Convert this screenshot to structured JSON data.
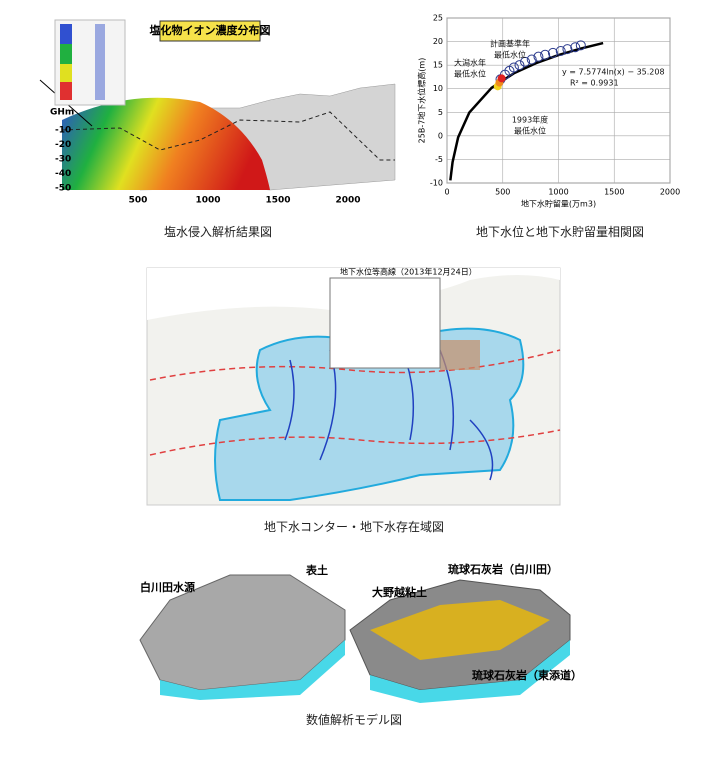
{
  "figures": [
    {
      "caption": "塩水侵入解析結果図",
      "title": "塩化物イオン濃度分布図",
      "y_axis_label": "GHm",
      "y_tick_labels": [
        "-10",
        "-20",
        "-30",
        "-40",
        "-50"
      ],
      "x_tick_labels": [
        "500",
        "1000",
        "1500",
        "2000"
      ]
    },
    {
      "caption": "地下水位と地下水貯留量相関図"
    },
    {
      "caption": "地下水コンター・地下水存在域図",
      "title": "地下水位等高線（2013年12月24日）"
    },
    {
      "caption": "数値解析モデル図",
      "labels": [
        "白川田水源",
        "表土",
        "大野越粘土",
        "琉球石灰岩（白川田）",
        "琉球石灰岩（東添道）"
      ]
    }
  ],
  "chart_data": {
    "type": "scatter",
    "x_label": "地下水貯留量(万m3)",
    "y_label": "25B-7地下水位標高(m)",
    "xlim": [
      0,
      2000
    ],
    "xticks": [
      0,
      500,
      1000,
      1500,
      2000
    ],
    "ylim": [
      -10,
      25
    ],
    "yticks": [
      -10,
      -5,
      0,
      5,
      10,
      15,
      20,
      25
    ],
    "grid": true,
    "annotations": [
      [
        "計画基準年",
        "最低水位"
      ],
      [
        "大潟水年",
        "最低水位"
      ],
      [
        "1993年度",
        "最低水位"
      ],
      [
        "y = 7.5774ln(x) − 35.208",
        "R² = 0.9931"
      ]
    ],
    "series": [
      {
        "style": "line",
        "color": "#000000",
        "x": [
          30,
          50,
          100,
          200,
          400,
          600,
          800,
          1000,
          1200,
          1400
        ],
        "values": [
          -9.44,
          -5.57,
          -0.31,
          4.94,
          10.19,
          13.27,
          15.44,
          17.13,
          18.52,
          19.68
        ]
      },
      {
        "style": "open-marker",
        "color": "#2b3a8c",
        "x": [
          480,
          520,
          560,
          600,
          650,
          700,
          760,
          820,
          880,
          950,
          1020,
          1080,
          1150,
          1200
        ],
        "values": [
          12,
          13,
          13.8,
          14.5,
          15,
          15.7,
          16.2,
          16.8,
          17.2,
          17.6,
          18,
          18.4,
          18.8,
          19.2
        ]
      },
      {
        "style": "marker",
        "color": "#f2d21b",
        "x": [
          455
        ],
        "values": [
          10.5
        ]
      },
      {
        "style": "marker",
        "color": "#f08a1c",
        "x": [
          470
        ],
        "values": [
          11.3
        ]
      },
      {
        "style": "marker",
        "color": "#e02020",
        "x": [
          490
        ],
        "values": [
          12.2
        ]
      }
    ]
  }
}
